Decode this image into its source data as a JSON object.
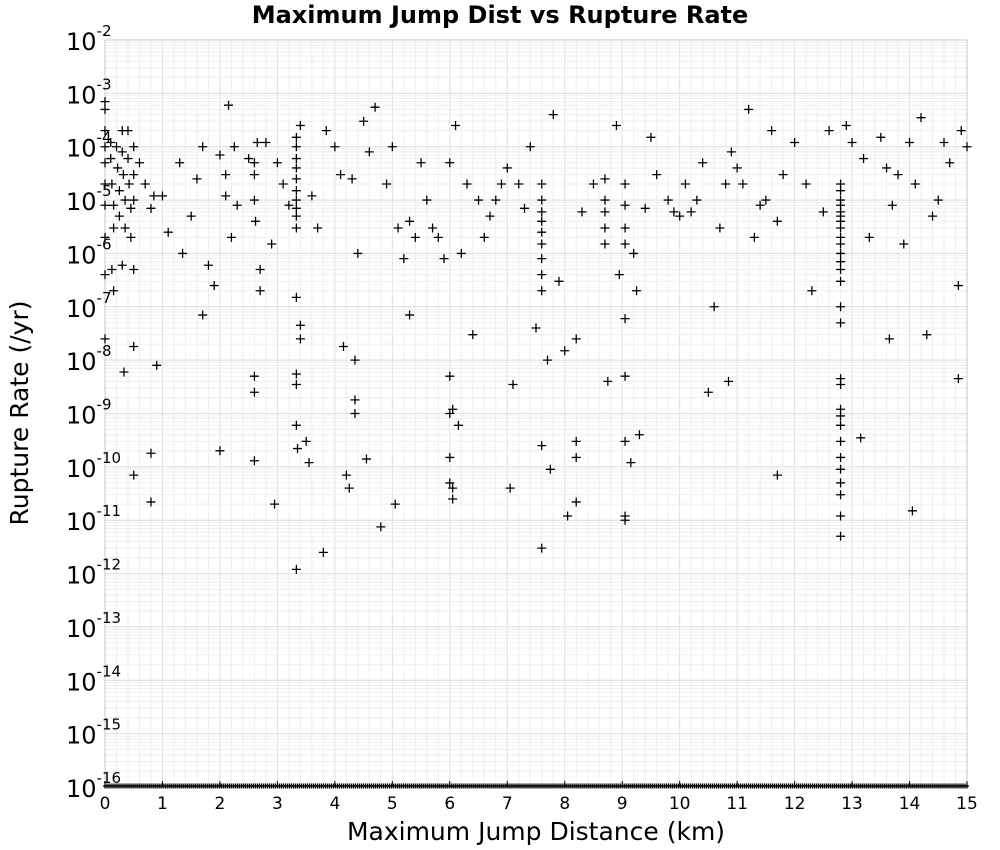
{
  "chart_data": {
    "type": "scatter",
    "title": "Maximum Jump Dist vs Rupture Rate",
    "xlabel": "Maximum Jump Distance (km)",
    "ylabel": "Rupture Rate (/yr)",
    "xlim": [
      0,
      15
    ],
    "ylim": [
      1e-16,
      0.01
    ],
    "yscale": "log",
    "grid": true,
    "marker": "+",
    "marker_color": "#000000",
    "x_ticks": [
      "0",
      "1",
      "2",
      "3",
      "4",
      "5",
      "6",
      "7",
      "8",
      "9",
      "10",
      "11",
      "12",
      "13",
      "14",
      "15"
    ],
    "y_ticks": [
      {
        "base": "10",
        "exp": "-2"
      },
      {
        "base": "10",
        "exp": "-3"
      },
      {
        "base": "10",
        "exp": "-4"
      },
      {
        "base": "10",
        "exp": "-5"
      },
      {
        "base": "10",
        "exp": "-6"
      },
      {
        "base": "10",
        "exp": "-7"
      },
      {
        "base": "10",
        "exp": "-8"
      },
      {
        "base": "10",
        "exp": "-9"
      },
      {
        "base": "10",
        "exp": "-10"
      },
      {
        "base": "10",
        "exp": "-11"
      },
      {
        "base": "10",
        "exp": "-12"
      },
      {
        "base": "10",
        "exp": "-13"
      },
      {
        "base": "10",
        "exp": "-14"
      },
      {
        "base": "10",
        "exp": "-15"
      },
      {
        "base": "10",
        "exp": "-16"
      }
    ],
    "points": [
      [
        0.0,
        0.0007
      ],
      [
        0.0,
        0.0005
      ],
      [
        0.0,
        0.0002
      ],
      [
        0.0,
        0.0001
      ],
      [
        0.0,
        5e-05
      ],
      [
        0.0,
        2e-05
      ],
      [
        0.0,
        8e-06
      ],
      [
        0.0,
        2e-06
      ],
      [
        0.0,
        4e-07
      ],
      [
        0.0,
        2.5e-08
      ],
      [
        0.1,
        0.00012
      ],
      [
        0.1,
        6e-05
      ],
      [
        0.12,
        2e-05
      ],
      [
        0.15,
        8e-06
      ],
      [
        0.15,
        3e-06
      ],
      [
        0.12,
        5e-07
      ],
      [
        0.15,
        2e-07
      ],
      [
        0.2,
        0.0001
      ],
      [
        0.22,
        4e-05
      ],
      [
        0.25,
        1.5e-05
      ],
      [
        0.25,
        5e-06
      ],
      [
        0.3,
        0.0002
      ],
      [
        0.3,
        8e-05
      ],
      [
        0.32,
        3e-05
      ],
      [
        0.35,
        1e-05
      ],
      [
        0.35,
        3e-06
      ],
      [
        0.3,
        6e-07
      ],
      [
        0.4,
        0.0002
      ],
      [
        0.4,
        6e-05
      ],
      [
        0.42,
        2e-05
      ],
      [
        0.45,
        7e-06
      ],
      [
        0.45,
        2e-06
      ],
      [
        0.5,
        0.0001
      ],
      [
        0.5,
        3e-05
      ],
      [
        0.5,
        1e-05
      ],
      [
        0.5,
        5e-07
      ],
      [
        0.33,
        6e-09
      ],
      [
        0.5,
        1.8e-08
      ],
      [
        0.9,
        8e-09
      ],
      [
        0.8,
        1.8e-10
      ],
      [
        0.8,
        2.2e-11
      ],
      [
        0.5,
        7e-11
      ],
      [
        0.6,
        5e-05
      ],
      [
        0.7,
        2e-05
      ],
      [
        0.8,
        7e-06
      ],
      [
        0.85,
        1.2e-05
      ],
      [
        1.0,
        1.2e-05
      ],
      [
        1.1,
        2.5e-06
      ],
      [
        1.3,
        5e-05
      ],
      [
        1.35,
        1e-06
      ],
      [
        1.5,
        5e-06
      ],
      [
        1.6,
        2.5e-05
      ],
      [
        1.7,
        0.0001
      ],
      [
        1.7,
        7e-08
      ],
      [
        1.8,
        6e-07
      ],
      [
        1.9,
        2.5e-07
      ],
      [
        2.0,
        7e-05
      ],
      [
        2.1,
        3e-05
      ],
      [
        2.1,
        1.2e-05
      ],
      [
        2.15,
        0.0006
      ],
      [
        2.2,
        2e-06
      ],
      [
        2.25,
        0.0001
      ],
      [
        2.3,
        8e-06
      ],
      [
        2.0,
        2e-10
      ],
      [
        2.5,
        6e-05
      ],
      [
        2.6,
        5e-05
      ],
      [
        2.6,
        3e-05
      ],
      [
        2.6,
        1e-05
      ],
      [
        2.62,
        4e-06
      ],
      [
        2.65,
        0.00012
      ],
      [
        2.6,
        5e-09
      ],
      [
        2.6,
        2.5e-09
      ],
      [
        2.6,
        1.3e-10
      ],
      [
        2.7,
        2e-07
      ],
      [
        2.7,
        5e-07
      ],
      [
        2.8,
        0.00012
      ],
      [
        2.9,
        1.5e-06
      ],
      [
        2.95,
        2e-11
      ],
      [
        3.0,
        5e-05
      ],
      [
        3.1,
        2e-05
      ],
      [
        3.2,
        8e-06
      ],
      [
        3.33,
        0.00015
      ],
      [
        3.33,
        0.0001
      ],
      [
        3.33,
        6e-05
      ],
      [
        3.33,
        4e-05
      ],
      [
        3.33,
        2.5e-05
      ],
      [
        3.33,
        1.5e-05
      ],
      [
        3.33,
        1e-05
      ],
      [
        3.33,
        7e-06
      ],
      [
        3.33,
        5e-06
      ],
      [
        3.33,
        3e-06
      ],
      [
        3.33,
        1.5e-07
      ],
      [
        3.33,
        6e-10
      ],
      [
        3.35,
        2.2e-10
      ],
      [
        3.33,
        5.5e-09
      ],
      [
        3.33,
        3.5e-09
      ],
      [
        3.33,
        1.2e-12
      ],
      [
        3.4,
        0.00025
      ],
      [
        3.4,
        4.5e-08
      ],
      [
        3.4,
        2.5e-08
      ],
      [
        3.5,
        3e-10
      ],
      [
        3.55,
        1.2e-10
      ],
      [
        3.6,
        1.2e-05
      ],
      [
        3.7,
        3e-06
      ],
      [
        3.8,
        2.5e-12
      ],
      [
        3.85,
        0.0002
      ],
      [
        4.0,
        0.0001
      ],
      [
        4.1,
        3e-05
      ],
      [
        4.15,
        1.8e-08
      ],
      [
        4.2,
        7e-11
      ],
      [
        4.25,
        4e-11
      ],
      [
        4.3,
        2.5e-05
      ],
      [
        4.35,
        1e-08
      ],
      [
        4.35,
        1.8e-09
      ],
      [
        4.35,
        1e-09
      ],
      [
        4.4,
        1e-06
      ],
      [
        4.5,
        0.0003
      ],
      [
        4.55,
        1.4e-10
      ],
      [
        4.6,
        8e-05
      ],
      [
        4.7,
        0.00055
      ],
      [
        4.8,
        7.5e-12
      ],
      [
        4.9,
        2e-05
      ],
      [
        5.0,
        0.0001
      ],
      [
        5.05,
        2e-11
      ],
      [
        5.1,
        3e-06
      ],
      [
        5.2,
        8e-07
      ],
      [
        5.3,
        4e-06
      ],
      [
        5.3,
        7e-08
      ],
      [
        5.4,
        2e-06
      ],
      [
        5.5,
        5e-05
      ],
      [
        5.6,
        1e-05
      ],
      [
        5.7,
        3e-06
      ],
      [
        5.8,
        2e-06
      ],
      [
        5.9,
        8e-07
      ],
      [
        6.0,
        5e-05
      ],
      [
        6.0,
        1.5e-10
      ],
      [
        6.0,
        5e-11
      ],
      [
        6.0,
        1e-09
      ],
      [
        6.05,
        1.2e-09
      ],
      [
        6.0,
        5e-09
      ],
      [
        6.05,
        4e-11
      ],
      [
        6.05,
        2.5e-11
      ],
      [
        6.1,
        0.00025
      ],
      [
        6.15,
        6e-10
      ],
      [
        6.2,
        1e-06
      ],
      [
        6.3,
        2e-05
      ],
      [
        6.4,
        3e-08
      ],
      [
        6.5,
        1e-05
      ],
      [
        6.6,
        2e-06
      ],
      [
        6.7,
        5e-06
      ],
      [
        6.8,
        1e-05
      ],
      [
        6.9,
        2e-05
      ],
      [
        7.0,
        4e-05
      ],
      [
        7.05,
        4e-11
      ],
      [
        7.1,
        3.5e-09
      ],
      [
        7.2,
        2e-05
      ],
      [
        7.3,
        7e-06
      ],
      [
        7.4,
        0.0001
      ],
      [
        7.5,
        4e-08
      ],
      [
        7.6,
        2e-05
      ],
      [
        7.6,
        1e-05
      ],
      [
        7.6,
        6e-06
      ],
      [
        7.6,
        4e-06
      ],
      [
        7.6,
        2.5e-06
      ],
      [
        7.6,
        1.5e-06
      ],
      [
        7.6,
        8e-07
      ],
      [
        7.6,
        4e-07
      ],
      [
        7.6,
        2e-07
      ],
      [
        7.6,
        2.5e-10
      ],
      [
        7.6,
        3e-12
      ],
      [
        7.7,
        1e-08
      ],
      [
        7.75,
        9e-11
      ],
      [
        7.8,
        0.0004
      ],
      [
        7.9,
        3e-07
      ],
      [
        8.0,
        1.5e-08
      ],
      [
        8.05,
        1.2e-11
      ],
      [
        8.2,
        2.5e-08
      ],
      [
        8.2,
        2.2e-11
      ],
      [
        8.2,
        3e-10
      ],
      [
        8.2,
        1.5e-10
      ],
      [
        8.3,
        6e-06
      ],
      [
        8.5,
        2e-05
      ],
      [
        8.7,
        2.5e-05
      ],
      [
        8.7,
        1e-05
      ],
      [
        8.7,
        6e-06
      ],
      [
        8.7,
        3e-06
      ],
      [
        8.7,
        1.5e-06
      ],
      [
        8.75,
        4e-09
      ],
      [
        8.9,
        0.00025
      ],
      [
        8.95,
        4e-07
      ],
      [
        9.05,
        2e-05
      ],
      [
        9.05,
        8e-06
      ],
      [
        9.05,
        3e-06
      ],
      [
        9.05,
        1.5e-06
      ],
      [
        9.05,
        6e-08
      ],
      [
        9.05,
        1e-11
      ],
      [
        9.05,
        1.2e-11
      ],
      [
        9.05,
        3e-10
      ],
      [
        9.05,
        5e-09
      ],
      [
        9.15,
        1.2e-10
      ],
      [
        9.2,
        1e-06
      ],
      [
        9.25,
        2e-07
      ],
      [
        9.3,
        4e-10
      ],
      [
        9.4,
        7e-06
      ],
      [
        9.5,
        0.00015
      ],
      [
        9.6,
        3e-05
      ],
      [
        9.8,
        1e-05
      ],
      [
        9.9,
        6e-06
      ],
      [
        10.0,
        5e-06
      ],
      [
        10.1,
        2e-05
      ],
      [
        10.2,
        6e-06
      ],
      [
        10.3,
        1e-05
      ],
      [
        10.4,
        5e-05
      ],
      [
        10.5,
        2.5e-09
      ],
      [
        10.6,
        1e-07
      ],
      [
        10.7,
        3e-06
      ],
      [
        10.8,
        2e-05
      ],
      [
        10.85,
        4e-09
      ],
      [
        10.9,
        8e-05
      ],
      [
        11.0,
        4e-05
      ],
      [
        11.1,
        2e-05
      ],
      [
        11.2,
        0.0005
      ],
      [
        11.3,
        2e-06
      ],
      [
        11.4,
        8e-06
      ],
      [
        11.5,
        1e-05
      ],
      [
        11.6,
        0.0002
      ],
      [
        11.7,
        7e-11
      ],
      [
        11.7,
        4e-06
      ],
      [
        11.8,
        3e-05
      ],
      [
        12.0,
        0.00012
      ],
      [
        12.2,
        2e-05
      ],
      [
        12.3,
        2e-07
      ],
      [
        12.5,
        6e-06
      ],
      [
        12.6,
        0.0002
      ],
      [
        12.8,
        2e-05
      ],
      [
        12.8,
        1.5e-05
      ],
      [
        12.8,
        1e-05
      ],
      [
        12.8,
        8e-06
      ],
      [
        12.8,
        6e-06
      ],
      [
        12.8,
        5e-06
      ],
      [
        12.8,
        4e-06
      ],
      [
        12.8,
        3e-06
      ],
      [
        12.8,
        2e-06
      ],
      [
        12.8,
        1.5e-06
      ],
      [
        12.8,
        1e-06
      ],
      [
        12.8,
        7e-07
      ],
      [
        12.8,
        5e-07
      ],
      [
        12.8,
        3e-07
      ],
      [
        12.8,
        1e-07
      ],
      [
        12.8,
        5e-08
      ],
      [
        12.8,
        4.5e-09
      ],
      [
        12.8,
        3.5e-09
      ],
      [
        12.8,
        1.2e-09
      ],
      [
        12.8,
        9e-10
      ],
      [
        12.8,
        6e-10
      ],
      [
        12.8,
        3e-10
      ],
      [
        12.8,
        1.5e-10
      ],
      [
        12.8,
        9e-11
      ],
      [
        12.8,
        5e-11
      ],
      [
        12.8,
        3e-11
      ],
      [
        12.8,
        1.2e-11
      ],
      [
        12.8,
        5e-12
      ],
      [
        12.9,
        0.00025
      ],
      [
        13.0,
        0.00012
      ],
      [
        13.15,
        3.5e-10
      ],
      [
        13.2,
        6e-05
      ],
      [
        13.3,
        2e-06
      ],
      [
        13.5,
        0.00015
      ],
      [
        13.6,
        4e-05
      ],
      [
        13.65,
        2.5e-08
      ],
      [
        13.7,
        8e-06
      ],
      [
        13.8,
        3e-05
      ],
      [
        13.9,
        1.5e-06
      ],
      [
        14.0,
        0.00012
      ],
      [
        14.05,
        1.5e-11
      ],
      [
        14.1,
        2e-05
      ],
      [
        14.2,
        0.00035
      ],
      [
        14.3,
        3e-08
      ],
      [
        14.4,
        5e-06
      ],
      [
        14.5,
        1e-05
      ],
      [
        14.6,
        0.00012
      ],
      [
        14.7,
        5e-05
      ],
      [
        14.85,
        2.5e-07
      ],
      [
        14.85,
        4.5e-09
      ],
      [
        14.9,
        0.0002
      ],
      [
        15.0,
        0.0001
      ]
    ]
  }
}
